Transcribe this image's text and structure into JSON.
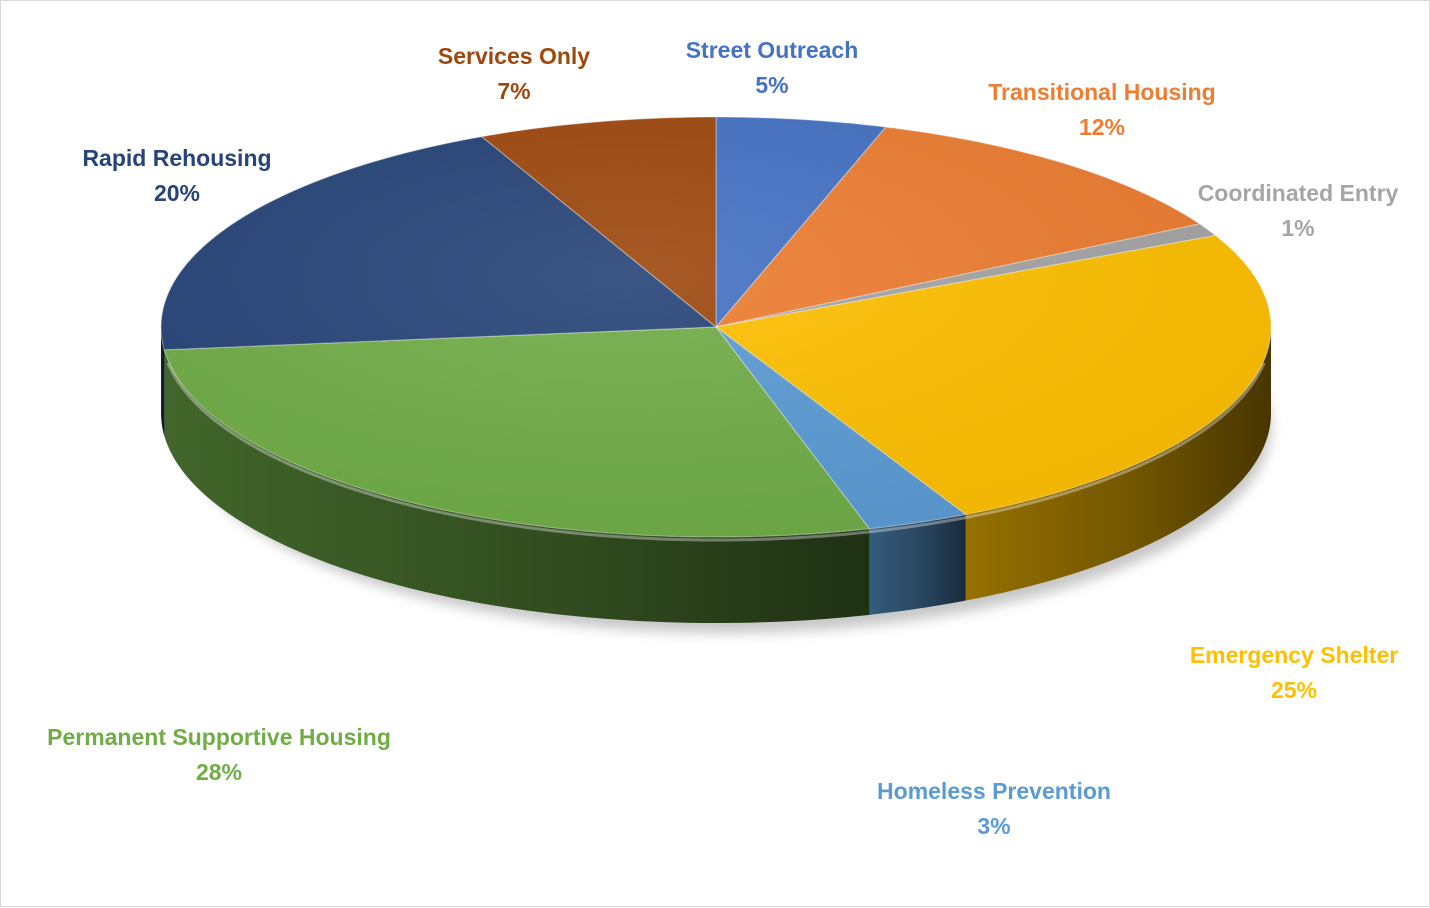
{
  "chart_data": {
    "type": "pie",
    "style": "3d",
    "title": "",
    "slices": [
      {
        "label": "Street Outreach",
        "value": 5,
        "value_label": "5%",
        "color": "#4472C4",
        "label_color": "#4472C4"
      },
      {
        "label": "Transitional Housing",
        "value": 12,
        "value_label": "12%",
        "color": "#ED7D31",
        "label_color": "#ED7D31"
      },
      {
        "label": "Coordinated Entry",
        "value": 1,
        "value_label": "1%",
        "color": "#A5A5A5",
        "label_color": "#A5A5A5"
      },
      {
        "label": "Emergency Shelter",
        "value": 25,
        "value_label": "25%",
        "color": "#FFC000",
        "label_color": "#FFC000"
      },
      {
        "label": "Homeless Prevention",
        "value": 3,
        "value_label": "3%",
        "color": "#5B9BD5",
        "label_color": "#5B9BD5"
      },
      {
        "label": "Permanent Supportive Housing",
        "value": 28,
        "value_label": "28%",
        "color": "#70AD47",
        "label_color": "#70AD47"
      },
      {
        "label": "Rapid Rehousing",
        "value": 20,
        "value_label": "20%",
        "color": "#264478",
        "label_color": "#264478"
      },
      {
        "label": "Services Only",
        "value": 7,
        "value_label": "7%",
        "color": "#9E480E",
        "label_color": "#9E480E"
      }
    ],
    "legend": "none",
    "data_labels": "outside"
  }
}
